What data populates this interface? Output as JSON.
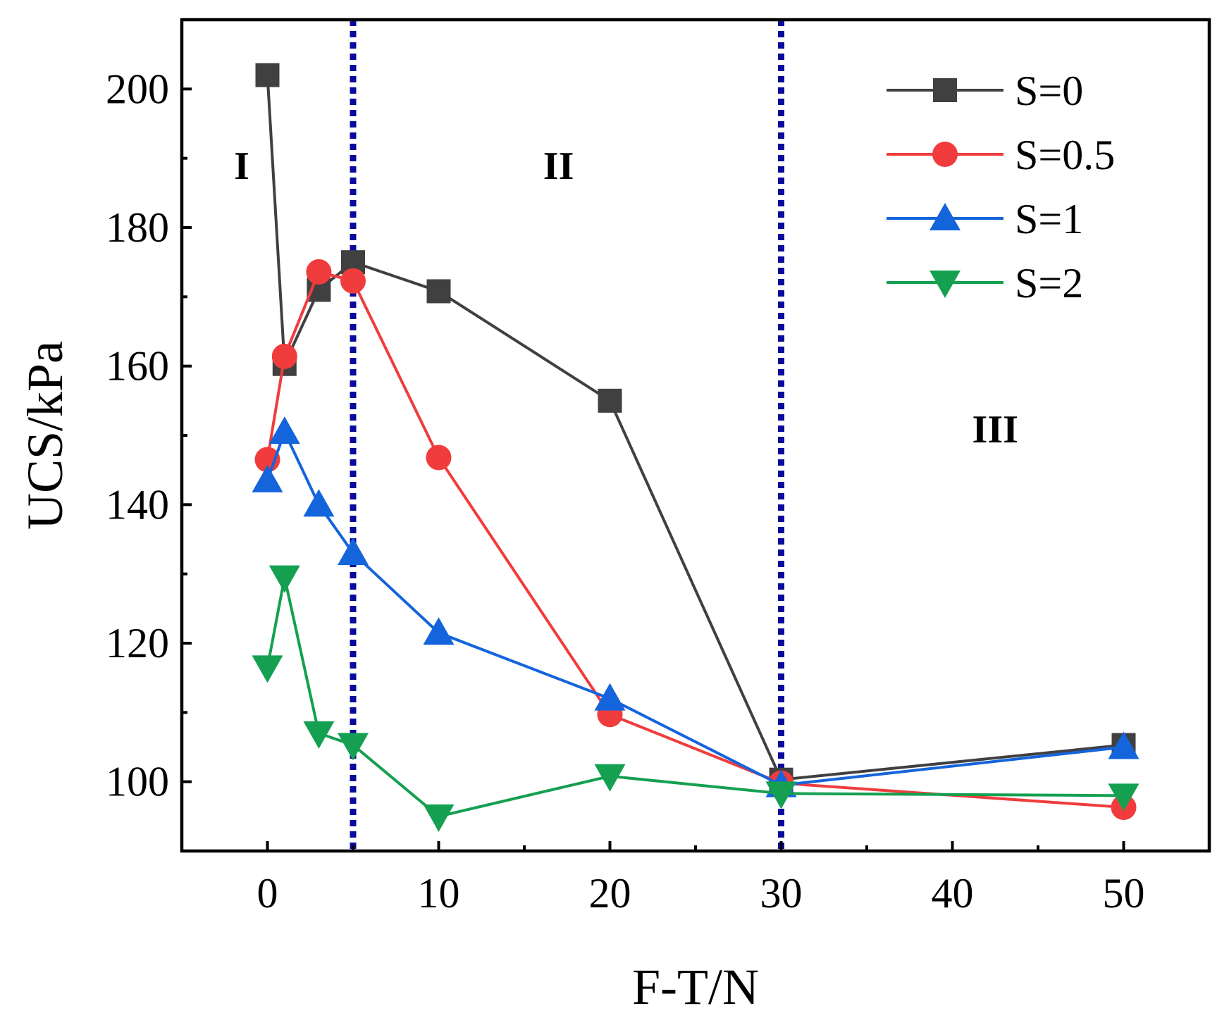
{
  "chart_data": {
    "type": "line",
    "title": "",
    "xlabel": "F-T/N",
    "ylabel": "UCS/kPa",
    "xlim": [
      -5,
      55
    ],
    "ylim": [
      90,
      210
    ],
    "x_ticks": [
      0,
      10,
      20,
      30,
      40,
      50
    ],
    "x_minor_ticks": [
      5,
      15,
      25,
      35,
      45
    ],
    "y_ticks": [
      100,
      120,
      140,
      160,
      180,
      200
    ],
    "y_minor_ticks": [
      110,
      130,
      150,
      170,
      190
    ],
    "grid": false,
    "legend_position": "top-right",
    "x": [
      0,
      1,
      3,
      5,
      10,
      20,
      30,
      50
    ],
    "series": [
      {
        "name": "S=0",
        "color": "#404040",
        "marker": "square",
        "values": [
          202,
          160.3,
          171,
          175,
          170.8,
          155,
          100.3,
          105.3
        ]
      },
      {
        "name": "S=0.5",
        "color": "#f03c3c",
        "marker": "circle",
        "values": [
          146.5,
          161.4,
          173.6,
          172.3,
          146.8,
          109.7,
          99.8,
          96.3
        ]
      },
      {
        "name": "S=1",
        "color": "#1464dc",
        "marker": "triangle-up",
        "values": [
          143.5,
          150.5,
          140,
          133,
          121.5,
          112,
          99.5,
          105
        ]
      },
      {
        "name": "S=2",
        "color": "#14a050",
        "marker": "triangle-down",
        "values": [
          116.5,
          129.5,
          107,
          105.3,
          95,
          100.8,
          98.3,
          98
        ]
      }
    ],
    "vertical_lines": [
      {
        "x": 5,
        "color": "#0a0a9c",
        "style": "dotted"
      },
      {
        "x": 30,
        "color": "#0a0a9c",
        "style": "dotted"
      }
    ],
    "annotations": [
      {
        "text": "I",
        "x": -1.5,
        "y": 187
      },
      {
        "text": "II",
        "x": 17,
        "y": 187
      },
      {
        "text": "III",
        "x": 42.5,
        "y": 149
      }
    ]
  }
}
